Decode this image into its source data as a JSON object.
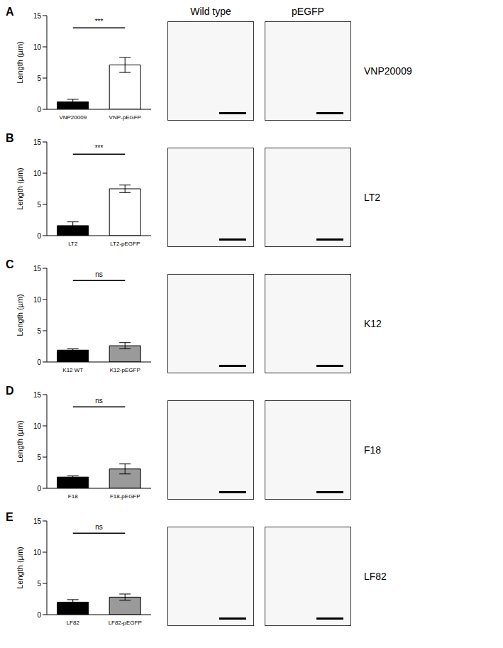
{
  "chart_data": [
    {
      "type": "bar",
      "title": "A",
      "subtitle": "VNP20009",
      "y_label": "Length (µm)",
      "categories": [
        "VNP20009",
        "VNP-pEGFP"
      ],
      "values": [
        1.2,
        7.1
      ],
      "errors": [
        0.4,
        1.2
      ],
      "colors": [
        "#000000",
        "#ffffff"
      ],
      "annotations": [
        "***"
      ],
      "ylim": [
        0,
        15
      ],
      "yticks": [
        0,
        5,
        10,
        15
      ]
    },
    {
      "type": "bar",
      "title": "B",
      "subtitle": "LT2",
      "y_label": "Length (µm)",
      "categories": [
        "LT2",
        "LT2-pEGFP"
      ],
      "values": [
        1.6,
        7.5
      ],
      "errors": [
        0.6,
        0.6
      ],
      "colors": [
        "#000000",
        "#ffffff"
      ],
      "annotations": [
        "***"
      ],
      "ylim": [
        0,
        15
      ],
      "yticks": [
        0,
        5,
        10,
        15
      ]
    },
    {
      "type": "bar",
      "title": "C",
      "subtitle": "K12",
      "y_label": "Length (µm)",
      "categories": [
        "K12 WT",
        "K12-pEGFP"
      ],
      "values": [
        1.9,
        2.6
      ],
      "errors": [
        0.2,
        0.5
      ],
      "colors": [
        "#000000",
        "#9a9a9a"
      ],
      "annotations": [
        "ns"
      ],
      "ylim": [
        0,
        15
      ],
      "yticks": [
        0,
        5,
        10,
        15
      ]
    },
    {
      "type": "bar",
      "title": "D",
      "subtitle": "F18",
      "y_label": "Length (µm)",
      "categories": [
        "F18",
        "F18-pEGFP"
      ],
      "values": [
        1.8,
        3.1
      ],
      "errors": [
        0.2,
        0.8
      ],
      "colors": [
        "#000000",
        "#9a9a9a"
      ],
      "annotations": [
        "ns"
      ],
      "ylim": [
        0,
        15
      ],
      "yticks": [
        0,
        5,
        10,
        15
      ]
    },
    {
      "type": "bar",
      "title": "E",
      "subtitle": "LF82",
      "y_label": "Length (µm)",
      "categories": [
        "LF82",
        "LF82-pEGFP"
      ],
      "values": [
        2.0,
        2.8
      ],
      "errors": [
        0.4,
        0.5
      ],
      "colors": [
        "#000000",
        "#9a9a9a"
      ],
      "annotations": [
        "ns"
      ],
      "ylim": [
        0,
        15
      ],
      "yticks": [
        0,
        5,
        10,
        15
      ]
    }
  ],
  "image_columns": [
    "Wild type",
    "pEGFP"
  ]
}
